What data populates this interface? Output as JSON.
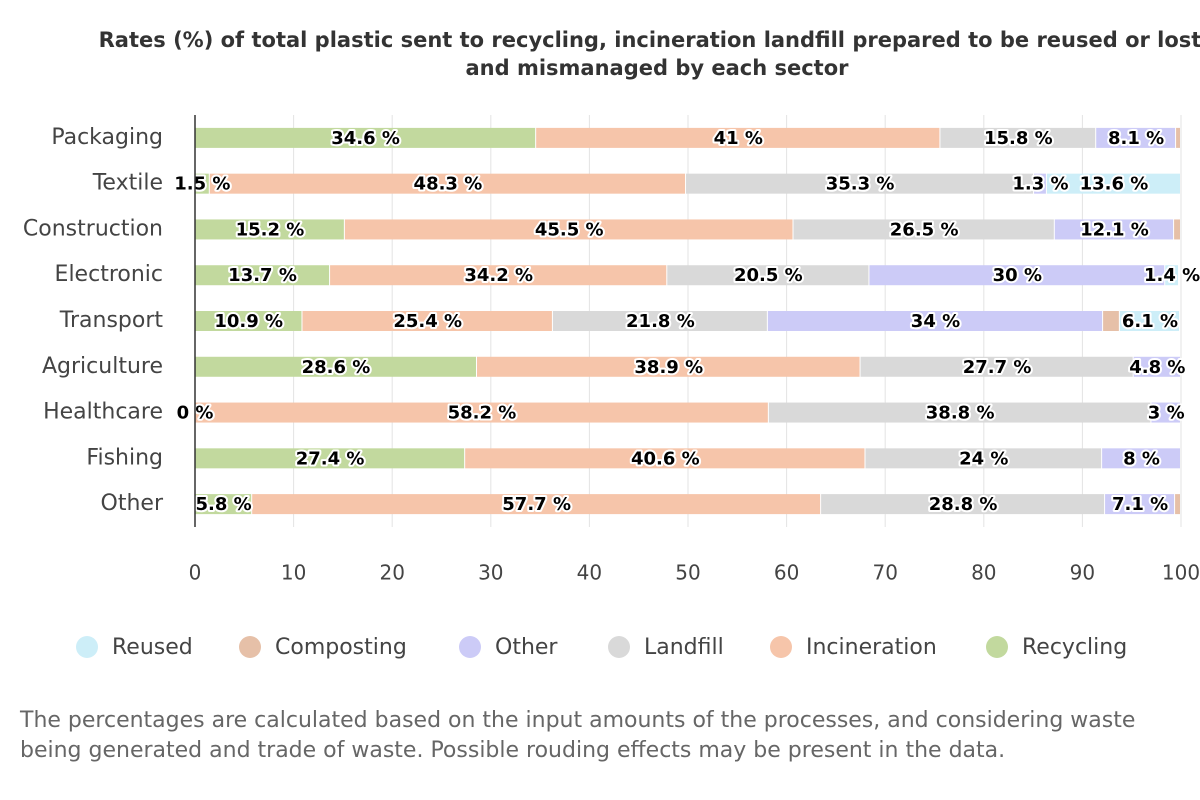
{
  "chart_data": {
    "type": "stacked-bar-horizontal",
    "title": [
      "Rates (%) of total plastic sent to recycling, incineration landfill prepared to be reused or lost",
      "and mismanaged by each sector"
    ],
    "categories": [
      "Packaging",
      "Textile",
      "Construction",
      "Electronic",
      "Transport",
      "Agriculture",
      "Healthcare",
      "Fishing",
      "Other"
    ],
    "series": [
      {
        "name": "Recycling",
        "color": "#c2d99e",
        "values": [
          34.6,
          1.5,
          15.2,
          13.7,
          10.9,
          28.6,
          0,
          27.4,
          5.8
        ],
        "value_labels": [
          "34.6 %",
          "1.5 %",
          "15.2 %",
          "13.7 %",
          "10.9 %",
          "28.6 %",
          "0 %",
          "27.4 %",
          "5.8 %"
        ]
      },
      {
        "name": "Incineration",
        "color": "#f6c5aa",
        "values": [
          41,
          48.3,
          45.5,
          34.2,
          25.4,
          38.9,
          58.2,
          40.6,
          57.7
        ],
        "value_labels": [
          "41 %",
          "48.3 %",
          "45.5 %",
          "34.2 %",
          "25.4 %",
          "38.9 %",
          "58.2 %",
          "40.6 %",
          "57.7 %"
        ]
      },
      {
        "name": "Landfill",
        "color": "#d9d9d9",
        "values": [
          15.8,
          35.3,
          26.5,
          20.5,
          21.8,
          27.7,
          38.8,
          24,
          28.8
        ],
        "value_labels": [
          "15.8 %",
          "35.3 %",
          "26.5 %",
          "20.5 %",
          "21.8 %",
          "27.7 %",
          "38.8 %",
          "24 %",
          "28.8 %"
        ]
      },
      {
        "name": "Other",
        "color": "#cccbf7",
        "values": [
          8.1,
          1.3,
          12.1,
          30,
          34,
          4.8,
          3,
          8,
          7.1
        ],
        "value_labels": [
          "8.1 %",
          "1.3 %",
          "12.1 %",
          "30 %",
          "34 %",
          "4.8 %",
          "3 %",
          "8 %",
          "7.1 %"
        ]
      },
      {
        "name": "Composting",
        "color": "#e6c0a8",
        "values": [
          0.5,
          0,
          0.7,
          0,
          1.7,
          0,
          0,
          0,
          0.6
        ],
        "value_labels": [
          null,
          null,
          null,
          null,
          null,
          null,
          null,
          null,
          null
        ]
      },
      {
        "name": "Reused",
        "color": "#cdeef8",
        "values": [
          0,
          13.6,
          0,
          1.4,
          6.1,
          0,
          0,
          0,
          0
        ],
        "value_labels": [
          null,
          "13.6 %",
          null,
          "1.4 %",
          "6.1 %",
          null,
          null,
          null,
          null
        ]
      }
    ],
    "xlim": [
      0,
      100
    ],
    "xticks": [
      0,
      10,
      20,
      30,
      40,
      50,
      60,
      70,
      80,
      90,
      100
    ],
    "grid": true,
    "note": [
      "The percentages are calculated based on the input amounts of the processes, and considering waste",
      "being generated and trade of waste. Possible rouding effects may be present in the data."
    ]
  }
}
